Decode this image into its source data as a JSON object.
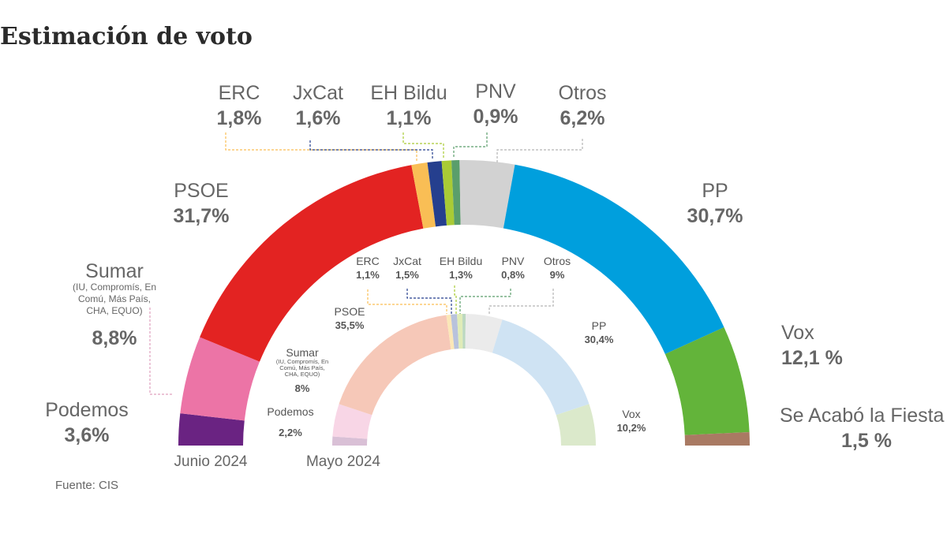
{
  "title": "Estimación de voto",
  "source": "Fuente: CIS",
  "chart_data": [
    {
      "type": "pie",
      "label": "Junio 2024",
      "slices": [
        {
          "name": "Podemos",
          "value": 3.6,
          "label": "3,6%",
          "color": "#6a2382"
        },
        {
          "name": "Sumar",
          "sub": [
            "(IU, Compromís, En",
            "Comú, Más País,",
            "CHA, EQUO)"
          ],
          "value": 8.8,
          "label": "8,8%",
          "color": "#ec74a6"
        },
        {
          "name": "PSOE",
          "value": 31.7,
          "label": "31,7%",
          "color": "#e32322"
        },
        {
          "name": "ERC",
          "value": 1.8,
          "label": "1,8%",
          "color": "#f9be55"
        },
        {
          "name": "JxCat",
          "value": 1.6,
          "label": "1,6%",
          "color": "#253f8e"
        },
        {
          "name": "EH Bildu",
          "value": 1.1,
          "label": "1,1%",
          "color": "#a9cb35"
        },
        {
          "name": "PNV",
          "value": 0.9,
          "label": "0,9%",
          "color": "#5a9e6b"
        },
        {
          "name": "Otros",
          "value": 6.2,
          "label": "6,2%",
          "color": "#d2d2d2"
        },
        {
          "name": "PP",
          "value": 30.7,
          "label": "30,7%",
          "color": "#009fdd"
        },
        {
          "name": "Vox",
          "value": 12.1,
          "label": "12,1 %",
          "color": "#63b43a"
        },
        {
          "name": "Se Acabó la Fiesta",
          "value": 1.5,
          "label": "1,5 %",
          "color": "#a97a63"
        }
      ]
    },
    {
      "type": "pie",
      "label": "Mayo 2024",
      "slices": [
        {
          "name": "Podemos",
          "value": 2.2,
          "label": "2,2%",
          "color": "#d9c0d6"
        },
        {
          "name": "Sumar",
          "sub": [
            "(IU, Compromís, En",
            "Comú, Más País,",
            "CHA, EQUO)"
          ],
          "value": 8,
          "label": "8%",
          "color": "#f8d6e6"
        },
        {
          "name": "PSOE",
          "value": 35.5,
          "label": "35,5%",
          "color": "#f6c8b8"
        },
        {
          "name": "ERC",
          "value": 1.1,
          "label": "1,1%",
          "color": "#fbe7b7"
        },
        {
          "name": "JxCat",
          "value": 1.5,
          "label": "1,5%",
          "color": "#b8c2dc"
        },
        {
          "name": "EH Bildu",
          "value": 1.3,
          "label": "1,3%",
          "color": "#e0ecb8"
        },
        {
          "name": "PNV",
          "value": 0.8,
          "label": "0,8%",
          "color": "#bcd8c0"
        },
        {
          "name": "Otros",
          "value": 9,
          "label": "9%",
          "color": "#ebebeb"
        },
        {
          "name": "PP",
          "value": 30.4,
          "label": "30,4%",
          "color": "#cfe3f3"
        },
        {
          "name": "Vox",
          "value": 10.2,
          "label": "10,2%",
          "color": "#dbe9cb"
        }
      ]
    }
  ]
}
